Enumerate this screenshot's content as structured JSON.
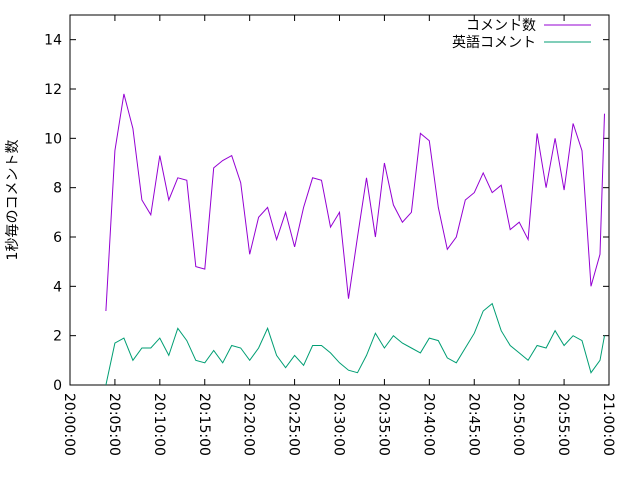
{
  "chart_data": {
    "type": "line",
    "y_label": "1秒毎のコメント数",
    "xlim": [
      "20:00:00",
      "21:00:00"
    ],
    "xticks": [
      "20:00:00",
      "20:05:00",
      "20:10:00",
      "20:15:00",
      "20:20:00",
      "20:25:00",
      "20:30:00",
      "20:35:00",
      "20:40:00",
      "20:45:00",
      "20:50:00",
      "20:55:00",
      "21:00:00"
    ],
    "ylim": [
      0,
      15
    ],
    "yticks": [
      0,
      2,
      4,
      6,
      8,
      10,
      12,
      14
    ],
    "legend": "top-right",
    "x": [
      "20:04:00",
      "20:05:00",
      "20:06:00",
      "20:07:00",
      "20:08:00",
      "20:09:00",
      "20:10:00",
      "20:11:00",
      "20:12:00",
      "20:13:00",
      "20:14:00",
      "20:15:00",
      "20:16:00",
      "20:17:00",
      "20:18:00",
      "20:19:00",
      "20:20:00",
      "20:21:00",
      "20:22:00",
      "20:23:00",
      "20:24:00",
      "20:25:00",
      "20:26:00",
      "20:27:00",
      "20:28:00",
      "20:29:00",
      "20:30:00",
      "20:31:00",
      "20:32:00",
      "20:33:00",
      "20:34:00",
      "20:35:00",
      "20:36:00",
      "20:37:00",
      "20:38:00",
      "20:39:00",
      "20:40:00",
      "20:41:00",
      "20:42:00",
      "20:43:00",
      "20:44:00",
      "20:45:00",
      "20:46:00",
      "20:47:00",
      "20:48:00",
      "20:49:00",
      "20:50:00",
      "20:51:00",
      "20:52:00",
      "20:53:00",
      "20:54:00",
      "20:55:00",
      "20:56:00",
      "20:57:00",
      "20:58:00",
      "20:59:00",
      "20:59:30"
    ],
    "series": [
      {
        "name": "コメント数",
        "color": "#9400d3",
        "values": [
          3.0,
          9.5,
          11.8,
          10.4,
          7.5,
          6.9,
          9.3,
          7.5,
          8.4,
          8.3,
          4.8,
          4.7,
          8.8,
          9.1,
          9.3,
          8.2,
          5.3,
          6.8,
          7.2,
          5.9,
          7.0,
          5.6,
          7.2,
          8.4,
          8.3,
          6.4,
          7.0,
          3.5,
          6.0,
          8.4,
          6.0,
          9.0,
          7.3,
          6.6,
          7.0,
          10.2,
          9.9,
          7.2,
          5.5,
          6.0,
          7.5,
          7.8,
          8.6,
          7.8,
          8.1,
          6.3,
          6.6,
          5.9,
          10.2,
          8.0,
          10.0,
          7.9,
          10.6,
          9.5,
          4.0,
          5.3,
          11.0
        ]
      },
      {
        "name": "英語コメント",
        "color": "#009e73",
        "values": [
          0,
          1.7,
          1.9,
          1.0,
          1.5,
          1.5,
          1.9,
          1.2,
          2.3,
          1.8,
          1.0,
          0.9,
          1.4,
          0.9,
          1.6,
          1.5,
          1.0,
          1.5,
          2.3,
          1.2,
          0.7,
          1.2,
          0.8,
          1.6,
          1.6,
          1.3,
          0.9,
          0.6,
          0.5,
          1.2,
          2.1,
          1.5,
          2.0,
          1.7,
          1.5,
          1.3,
          1.9,
          1.8,
          1.1,
          0.9,
          1.5,
          2.1,
          3.0,
          3.3,
          2.2,
          1.6,
          1.3,
          1.0,
          1.6,
          1.5,
          2.2,
          1.6,
          2.0,
          1.8,
          0.5,
          1.0,
          2.0
        ]
      }
    ]
  }
}
